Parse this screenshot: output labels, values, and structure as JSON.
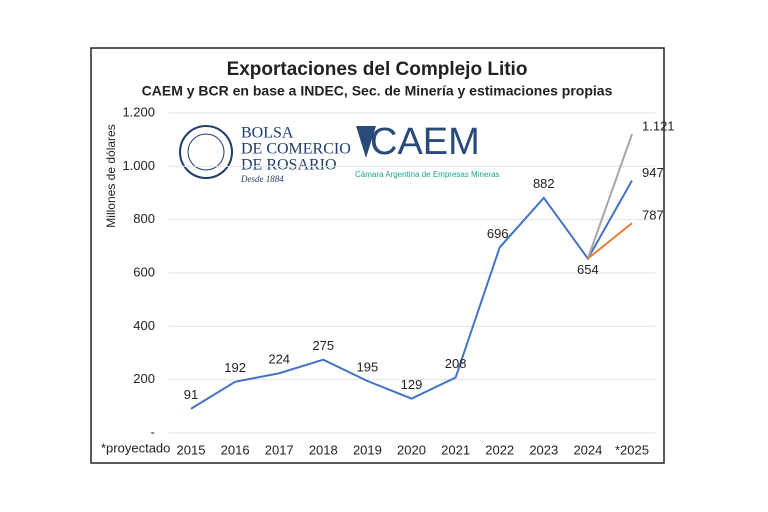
{
  "chart_data": {
    "type": "line",
    "title": "Exportaciones del Complejo Litio",
    "subtitle": "CAEM y BCR en base a INDEC, Sec. de Minería y estimaciones propias",
    "y_label": "Millones de dólares",
    "note": "*proyectado",
    "categories": [
      "2015",
      "2016",
      "2017",
      "2018",
      "2019",
      "2020",
      "2021",
      "2022",
      "2023",
      "2024",
      "*2025"
    ],
    "series": [
      {
        "color": "#4472c4",
        "values": [
          91,
          192,
          224,
          275,
          195,
          129,
          208,
          696,
          882,
          654,
          947
        ]
      },
      {
        "color": "#a5a5a5",
        "values": [
          null,
          null,
          null,
          null,
          null,
          null,
          null,
          null,
          null,
          654,
          1121
        ],
        "value_labels": [
          null,
          null,
          null,
          null,
          null,
          null,
          null,
          null,
          null,
          null,
          "1.121"
        ]
      },
      {
        "color": "#ed7d31",
        "values": [
          null,
          null,
          null,
          null,
          null,
          null,
          null,
          null,
          null,
          654,
          787
        ],
        "value_labels": [
          null,
          null,
          null,
          null,
          null,
          null,
          null,
          null,
          null,
          null,
          "787"
        ]
      }
    ],
    "ylim": [
      0,
      1200
    ],
    "yticks": [
      {
        "value": 0,
        "label": "-"
      },
      200,
      400,
      600,
      800,
      {
        "value": 1000,
        "label": "1.000"
      },
      {
        "value": 1200,
        "label": "1.200"
      }
    ],
    "grid": true
  },
  "logos": {
    "bcr": {
      "name": [
        "BOLSA",
        "DE COMERCIO",
        "DE ROSARIO"
      ],
      "since": "Desde 1884"
    },
    "caem": {
      "name": "CAEM",
      "subtitle": "Cámara Argentina de Empresas Mineras"
    }
  }
}
